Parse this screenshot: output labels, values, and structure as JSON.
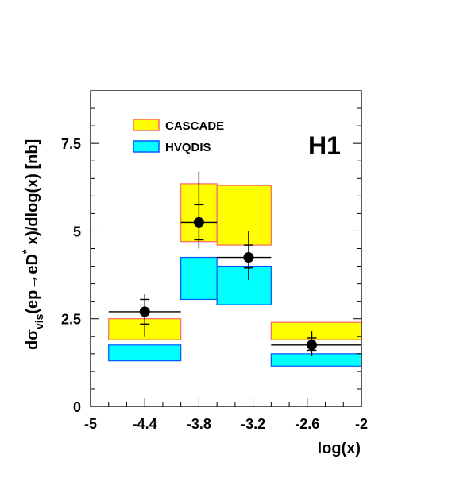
{
  "chart_data": {
    "type": "bar",
    "experiment_label": "H1",
    "xlabel": "log(x)",
    "ylabel_parts": {
      "prefix": "d",
      "sigma": "σ",
      "sigma_sub": "vis",
      "process": "(ep→eD",
      "star": "*",
      "rest": " x)/dlog(x) [nb]"
    },
    "xlim": [
      -5,
      -2
    ],
    "ylim": [
      0,
      9
    ],
    "x_ticks": [
      -5,
      -4.4,
      -3.8,
      -3.2,
      -2.6,
      -2
    ],
    "x_tick_labels": [
      "-5",
      "-4.4",
      "-3.8",
      "-3.2",
      "-2.6",
      "-2"
    ],
    "y_ticks": [
      0,
      2.5,
      5,
      7.5
    ],
    "y_tick_labels": [
      "0",
      "2.5",
      "5",
      "7.5"
    ],
    "legend_position": "top-left",
    "colors": {
      "cascade_fill": "#ffff00",
      "cascade_edge": "#ff6666",
      "hvqdis_fill": "#00ffff",
      "hvqdis_edge": "#0055ff",
      "data": "#000000"
    },
    "series": [
      {
        "name": "CASCADE",
        "kind": "band",
        "bands": [
          {
            "x_low": -4.8,
            "x_high": -4.0,
            "y_low": 1.9,
            "y_high": 2.5
          },
          {
            "x_low": -4.0,
            "x_high": -3.6,
            "y_low": 4.7,
            "y_high": 6.35
          },
          {
            "x_low": -3.6,
            "x_high": -3.0,
            "y_low": 4.6,
            "y_high": 6.3
          },
          {
            "x_low": -3.0,
            "x_high": -2.0,
            "y_low": 1.9,
            "y_high": 2.4
          }
        ]
      },
      {
        "name": "HVQDIS",
        "kind": "band",
        "bands": [
          {
            "x_low": -4.8,
            "x_high": -4.0,
            "y_low": 1.3,
            "y_high": 1.75
          },
          {
            "x_low": -4.0,
            "x_high": -3.6,
            "y_low": 3.05,
            "y_high": 4.25
          },
          {
            "x_low": -3.6,
            "x_high": -3.0,
            "y_low": 2.9,
            "y_high": 4.0
          },
          {
            "x_low": -3.0,
            "x_high": -2.0,
            "y_low": 1.15,
            "y_high": 1.5
          }
        ]
      },
      {
        "kind": "points",
        "points": [
          {
            "x": -4.4,
            "y": 2.7,
            "x_low": -4.8,
            "x_high": -4.0,
            "stat_low": 2.35,
            "stat_high": 3.05,
            "tot_low": 2.0,
            "tot_high": 3.2
          },
          {
            "x": -3.8,
            "y": 5.25,
            "x_low": -4.0,
            "x_high": -3.6,
            "stat_low": 4.75,
            "stat_high": 5.75,
            "tot_low": 4.5,
            "tot_high": 6.7
          },
          {
            "x": -3.25,
            "y": 4.25,
            "x_low": -3.6,
            "x_high": -3.0,
            "stat_low": 3.95,
            "stat_high": 4.6,
            "tot_low": 3.6,
            "tot_high": 5.0
          },
          {
            "x": -2.55,
            "y": 1.75,
            "x_low": -3.0,
            "x_high": -2.0,
            "stat_low": 1.6,
            "stat_high": 1.95,
            "tot_low": 1.45,
            "tot_high": 2.15
          }
        ]
      }
    ]
  }
}
